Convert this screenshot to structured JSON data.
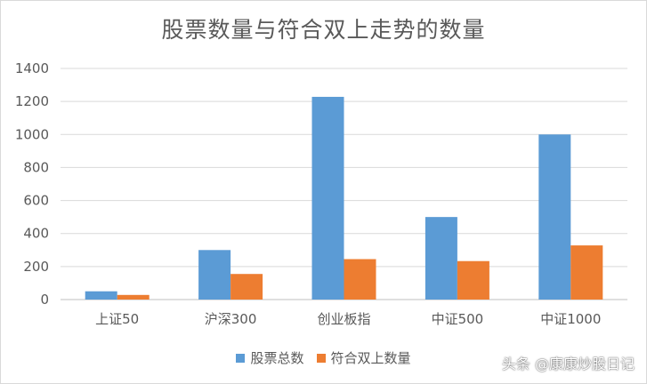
{
  "chart_data": {
    "type": "bar",
    "title": "股票数量与符合双上走势的数量",
    "categories": [
      "上证50",
      "沪深300",
      "创业板指",
      "中证500",
      "中证1000"
    ],
    "series": [
      {
        "name": "股票总数",
        "values": [
          50,
          300,
          1228,
          500,
          1000
        ],
        "color": "#5b9bd5"
      },
      {
        "name": "符合双上数量",
        "values": [
          28,
          155,
          245,
          233,
          328
        ],
        "color": "#ed7d31"
      }
    ],
    "ylim": [
      0,
      1400
    ],
    "yticks": [
      0,
      200,
      400,
      600,
      800,
      1000,
      1200,
      1400
    ],
    "grid": true,
    "legend_position": "bottom"
  },
  "watermark": "头条 @康康炒股日记"
}
